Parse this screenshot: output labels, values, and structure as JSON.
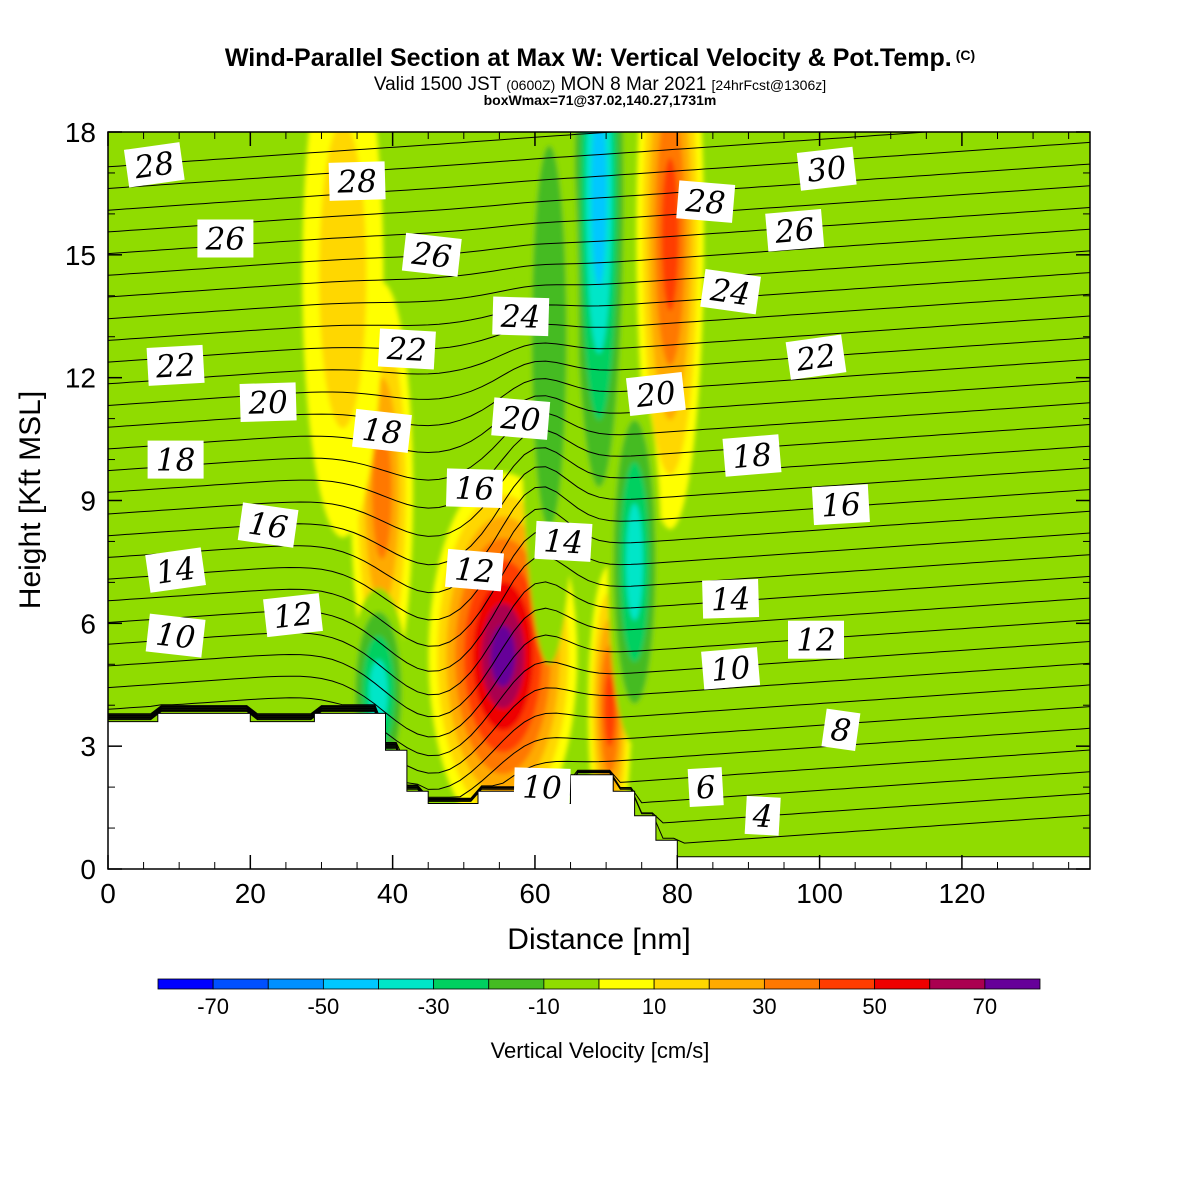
{
  "header": {
    "title": "Wind-Parallel Section at Max W: Vertical Velocity & Pot.Temp.",
    "copyright": "(C)",
    "subtitle_a": "Valid 1500 JST ",
    "subtitle_b": "(0600Z)",
    "subtitle_c": " MON 8 Mar 2021 ",
    "subtitle_d": "[24hrFcst@1306z]",
    "box_info": "boxWmax=71@37.02,140.27,1731m"
  },
  "chart_data": {
    "type": "heatmap",
    "xlabel": "Distance [nm]",
    "ylabel": "Height [Kft MSL]",
    "xlim": [
      0,
      138
    ],
    "ylim": [
      0,
      18
    ],
    "x_ticks": [
      0,
      20,
      40,
      60,
      80,
      100,
      120
    ],
    "y_ticks": [
      0,
      3,
      6,
      9,
      12,
      15,
      18
    ],
    "colorbar": {
      "title": "Vertical Velocity [cm/s]",
      "tick_labels": [
        "-70",
        "-50",
        "-30",
        "-10",
        "10",
        "30",
        "50",
        "70"
      ],
      "tick_values": [
        -70,
        -50,
        -30,
        -10,
        10,
        30,
        50,
        70
      ],
      "bounds": [
        -80,
        80
      ],
      "bins": [
        {
          "min": -80,
          "max": -70,
          "color": "#0000ff"
        },
        {
          "min": -70,
          "max": -60,
          "color": "#0050ff"
        },
        {
          "min": -60,
          "max": -50,
          "color": "#0090ff"
        },
        {
          "min": -50,
          "max": -40,
          "color": "#00c8ff"
        },
        {
          "min": -40,
          "max": -30,
          "color": "#00e6c8"
        },
        {
          "min": -30,
          "max": -20,
          "color": "#00d060"
        },
        {
          "min": -20,
          "max": -10,
          "color": "#44bb22"
        },
        {
          "min": -10,
          "max": 0,
          "color": "#90dc00"
        },
        {
          "min": 0,
          "max": 10,
          "color": "#ffff00"
        },
        {
          "min": 10,
          "max": 20,
          "color": "#ffd700"
        },
        {
          "min": 20,
          "max": 30,
          "color": "#ffaa00"
        },
        {
          "min": 30,
          "max": 40,
          "color": "#ff7800"
        },
        {
          "min": 40,
          "max": 50,
          "color": "#ff3c00"
        },
        {
          "min": 50,
          "max": 60,
          "color": "#ee0000"
        },
        {
          "min": 60,
          "max": 70,
          "color": "#aa0050"
        },
        {
          "min": 70,
          "max": 80,
          "color": "#660099"
        }
      ]
    },
    "terrain": [
      [
        0,
        3.6
      ],
      [
        7,
        3.6
      ],
      [
        7,
        3.8
      ],
      [
        20,
        3.8
      ],
      [
        20,
        3.6
      ],
      [
        29,
        3.6
      ],
      [
        29,
        3.8
      ],
      [
        39,
        3.8
      ],
      [
        39,
        2.9
      ],
      [
        42,
        2.9
      ],
      [
        42,
        1.9
      ],
      [
        45,
        1.9
      ],
      [
        45,
        1.6
      ],
      [
        52,
        1.6
      ],
      [
        52,
        1.9
      ],
      [
        61,
        1.9
      ],
      [
        61,
        1.6
      ],
      [
        65,
        1.6
      ],
      [
        65,
        2.3
      ],
      [
        71,
        2.3
      ],
      [
        71,
        1.9
      ],
      [
        74,
        1.9
      ],
      [
        74,
        1.3
      ],
      [
        77,
        1.3
      ],
      [
        77,
        0.7
      ],
      [
        80,
        0.7
      ],
      [
        80,
        0.3
      ],
      [
        138,
        0.3
      ]
    ],
    "velocity_features": [
      {
        "x": 55.5,
        "y": 5.2,
        "rx": 5.5,
        "ry": 2.8,
        "value": 71
      },
      {
        "x": 79,
        "y": 15.5,
        "rx": 2.5,
        "ry": 4.5,
        "value": 45
      },
      {
        "x": 38.5,
        "y": 9.2,
        "rx": 2.3,
        "ry": 3.2,
        "value": 32
      },
      {
        "x": 70.5,
        "y": 3.9,
        "rx": 1.6,
        "ry": 2.2,
        "value": 42
      },
      {
        "x": 69,
        "y": 16.5,
        "rx": 2.2,
        "ry": 5.5,
        "value": -48
      },
      {
        "x": 74,
        "y": 7.5,
        "rx": 2.0,
        "ry": 2.8,
        "value": -35
      },
      {
        "x": 38,
        "y": 4.3,
        "rx": 2.2,
        "ry": 1.6,
        "value": -38
      },
      {
        "x": 62,
        "y": 13,
        "rx": 2.2,
        "ry": 5,
        "value": -18
      },
      {
        "x": 33,
        "y": 14.5,
        "rx": 3,
        "ry": 4,
        "value": 15
      }
    ],
    "theta_labels": [
      {
        "x": 6.5,
        "y": 17.2,
        "text": "28"
      },
      {
        "x": 35,
        "y": 16.8,
        "text": "28"
      },
      {
        "x": 84,
        "y": 16.3,
        "text": "28"
      },
      {
        "x": 101,
        "y": 17.1,
        "text": "30"
      },
      {
        "x": 16.5,
        "y": 15.4,
        "text": "26"
      },
      {
        "x": 45.5,
        "y": 15,
        "text": "26"
      },
      {
        "x": 96.5,
        "y": 15.6,
        "text": "26"
      },
      {
        "x": 58,
        "y": 13.5,
        "text": "24"
      },
      {
        "x": 87.5,
        "y": 14.1,
        "text": "24"
      },
      {
        "x": 9.5,
        "y": 12.3,
        "text": "22"
      },
      {
        "x": 42,
        "y": 12.7,
        "text": "22"
      },
      {
        "x": 99.5,
        "y": 12.5,
        "text": "22"
      },
      {
        "x": 22.5,
        "y": 11.4,
        "text": "20"
      },
      {
        "x": 58,
        "y": 11,
        "text": "20"
      },
      {
        "x": 77,
        "y": 11.6,
        "text": "20"
      },
      {
        "x": 9.5,
        "y": 10,
        "text": "18"
      },
      {
        "x": 38.5,
        "y": 10.7,
        "text": "18"
      },
      {
        "x": 90.5,
        "y": 10.1,
        "text": "18"
      },
      {
        "x": 51.5,
        "y": 9.3,
        "text": "16"
      },
      {
        "x": 22.5,
        "y": 8.4,
        "text": "16"
      },
      {
        "x": 103,
        "y": 8.9,
        "text": "16"
      },
      {
        "x": 64,
        "y": 8,
        "text": "14"
      },
      {
        "x": 9.5,
        "y": 7.3,
        "text": "14"
      },
      {
        "x": 87.5,
        "y": 6.6,
        "text": "14"
      },
      {
        "x": 51.5,
        "y": 7.3,
        "text": "12"
      },
      {
        "x": 26,
        "y": 6.2,
        "text": "12"
      },
      {
        "x": 99.5,
        "y": 5.6,
        "text": "12"
      },
      {
        "x": 9.5,
        "y": 5.7,
        "text": "10"
      },
      {
        "x": 87.5,
        "y": 4.9,
        "text": "10"
      },
      {
        "x": 61,
        "y": 2,
        "text": "10"
      },
      {
        "x": 103,
        "y": 3.4,
        "text": "8"
      },
      {
        "x": 84,
        "y": 2,
        "text": "6"
      },
      {
        "x": 92,
        "y": 1.3,
        "text": "4"
      }
    ]
  }
}
